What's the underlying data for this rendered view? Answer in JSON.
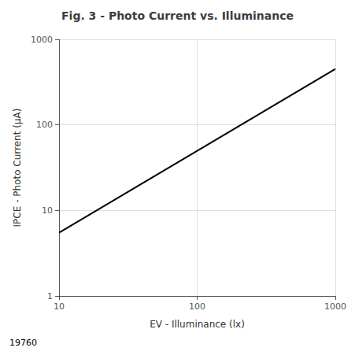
{
  "chart_data": {
    "type": "line",
    "title": "Fig. 3 - Photo Current vs. Illuminance",
    "xlabel": "EV - Illuminance (lx)",
    "ylabel": "IPCE - Photo Current (μA)",
    "annotations": [
      "19760"
    ],
    "x": [
      10,
      1000
    ],
    "values": [
      5.5,
      450
    ],
    "color": "#000000",
    "log": true,
    "xlim": [
      10,
      1000
    ],
    "ylim": [
      1,
      1000
    ],
    "xticks": [
      10,
      100,
      1000
    ],
    "yticks": [
      1,
      10,
      100,
      1000
    ],
    "grid": true
  }
}
